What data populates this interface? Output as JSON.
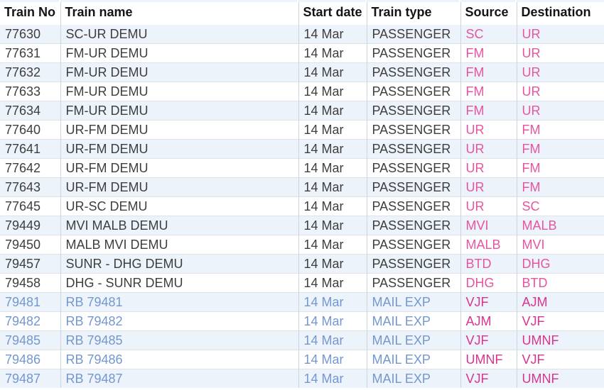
{
  "table": {
    "columns": [
      {
        "key": "train_no",
        "label": "Train No"
      },
      {
        "key": "train_name",
        "label": "Train name"
      },
      {
        "key": "start_date",
        "label": "Start date"
      },
      {
        "key": "train_type",
        "label": "Train type"
      },
      {
        "key": "source",
        "label": "Source"
      },
      {
        "key": "destination",
        "label": "Destination"
      }
    ],
    "rows": [
      {
        "train_no": "77630",
        "train_name": "SC-UR DEMU",
        "start_date": "14 Mar",
        "train_type": "PASSENGER",
        "source": "SC",
        "destination": "UR",
        "style": "regular"
      },
      {
        "train_no": "77631",
        "train_name": "FM-UR DEMU",
        "start_date": "14 Mar",
        "train_type": "PASSENGER",
        "source": "FM",
        "destination": "UR",
        "style": "regular"
      },
      {
        "train_no": "77632",
        "train_name": "FM-UR DEMU",
        "start_date": "14 Mar",
        "train_type": "PASSENGER",
        "source": "FM",
        "destination": "UR",
        "style": "regular"
      },
      {
        "train_no": "77633",
        "train_name": "FM-UR DEMU",
        "start_date": "14 Mar",
        "train_type": "PASSENGER",
        "source": "FM",
        "destination": "UR",
        "style": "regular"
      },
      {
        "train_no": "77634",
        "train_name": "FM-UR DEMU",
        "start_date": "14 Mar",
        "train_type": "PASSENGER",
        "source": "FM",
        "destination": "UR",
        "style": "regular"
      },
      {
        "train_no": "77640",
        "train_name": "UR-FM DEMU",
        "start_date": "14 Mar",
        "train_type": "PASSENGER",
        "source": "UR",
        "destination": "FM",
        "style": "regular"
      },
      {
        "train_no": "77641",
        "train_name": "UR-FM DEMU",
        "start_date": "14 Mar",
        "train_type": "PASSENGER",
        "source": "UR",
        "destination": "FM",
        "style": "regular"
      },
      {
        "train_no": "77642",
        "train_name": "UR-FM DEMU",
        "start_date": "14 Mar",
        "train_type": "PASSENGER",
        "source": "UR",
        "destination": "FM",
        "style": "regular"
      },
      {
        "train_no": "77643",
        "train_name": "UR-FM DEMU",
        "start_date": "14 Mar",
        "train_type": "PASSENGER",
        "source": "UR",
        "destination": "FM",
        "style": "regular"
      },
      {
        "train_no": "77645",
        "train_name": "UR-SC DEMU",
        "start_date": "14 Mar",
        "train_type": "PASSENGER",
        "source": "UR",
        "destination": "SC",
        "style": "regular"
      },
      {
        "train_no": "79449",
        "train_name": "MVI MALB DEMU",
        "start_date": "14 Mar",
        "train_type": "PASSENGER",
        "source": "MVI",
        "destination": "MALB",
        "style": "regular"
      },
      {
        "train_no": "79450",
        "train_name": "MALB MVI DEMU",
        "start_date": "14 Mar",
        "train_type": "PASSENGER",
        "source": "MALB",
        "destination": "MVI",
        "style": "regular"
      },
      {
        "train_no": "79457",
        "train_name": "SUNR - DHG DEMU",
        "start_date": "14 Mar",
        "train_type": "PASSENGER",
        "source": "BTD",
        "destination": "DHG",
        "style": "regular"
      },
      {
        "train_no": "79458",
        "train_name": "DHG - SUNR DEMU",
        "start_date": "14 Mar",
        "train_type": "PASSENGER",
        "source": "DHG",
        "destination": "BTD",
        "style": "regular"
      },
      {
        "train_no": "79481",
        "train_name": "RB 79481",
        "start_date": "14 Mar",
        "train_type": "MAIL EXP",
        "source": "VJF",
        "destination": "AJM",
        "style": "link"
      },
      {
        "train_no": "79482",
        "train_name": "RB 79482",
        "start_date": "14 Mar",
        "train_type": "MAIL EXP",
        "source": "AJM",
        "destination": "VJF",
        "style": "link"
      },
      {
        "train_no": "79485",
        "train_name": "RB 79485",
        "start_date": "14 Mar",
        "train_type": "MAIL EXP",
        "source": "VJF",
        "destination": "UMNF",
        "style": "link"
      },
      {
        "train_no": "79486",
        "train_name": "RB 79486",
        "start_date": "14 Mar",
        "train_type": "MAIL EXP",
        "source": "UMNF",
        "destination": "VJF",
        "style": "link"
      },
      {
        "train_no": "79487",
        "train_name": "RB 79487",
        "start_date": "14 Mar",
        "train_type": "MAIL EXP",
        "source": "VJF",
        "destination": "UMNF",
        "style": "link"
      }
    ]
  },
  "colors": {
    "header_text": "#141414",
    "row_text": "#3e3e3e",
    "link_text": "#7497d0",
    "source_dest_passenger": "#e8559f",
    "source_dest_mail": "#d93490",
    "stripe_bg": "#ecf3fb",
    "border_vertical": "#ccd4dd",
    "border_horizontal": "#dde3e9"
  }
}
